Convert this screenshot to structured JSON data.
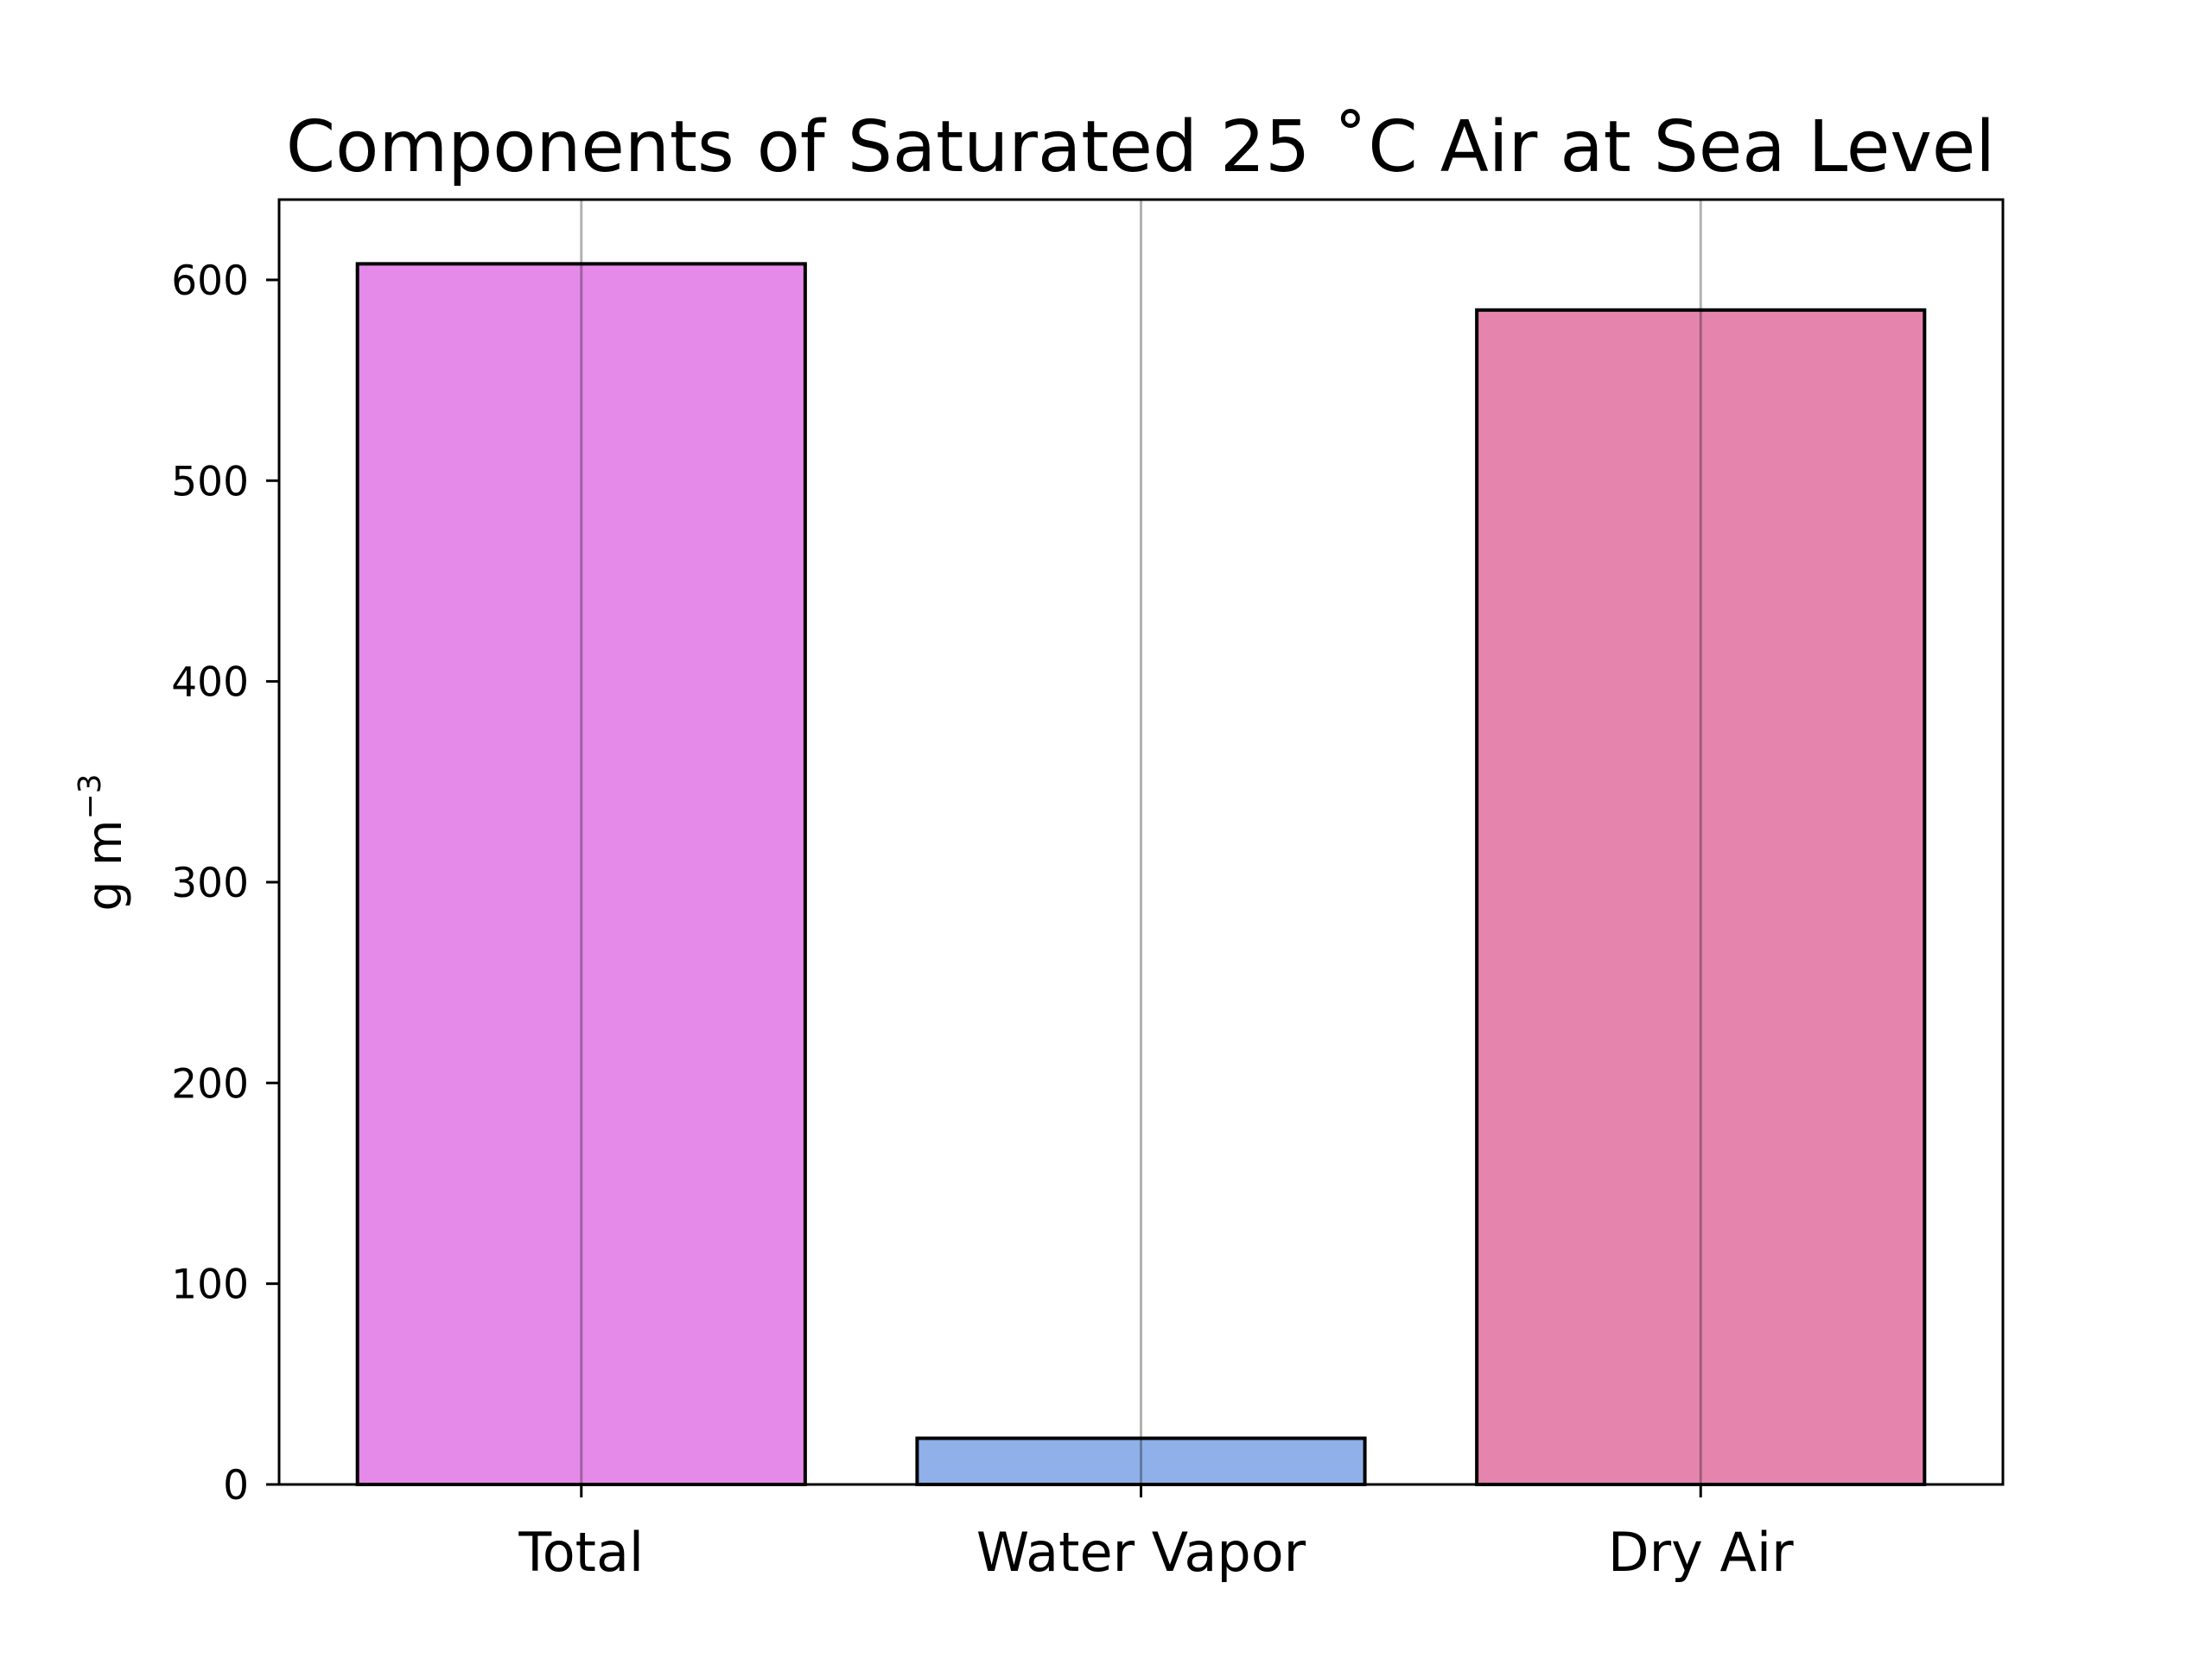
{
  "chart_data": {
    "type": "bar",
    "title": "Components of Saturated 25 ˚C Air at Sea Level",
    "xlabel": "",
    "ylabel": "g m",
    "ylabel_superscript": "−3",
    "categories": [
      "Total",
      "Water Vapor",
      "Dry Air"
    ],
    "values": [
      608,
      23,
      585
    ],
    "colors": [
      "#e68ae9",
      "#8fb0e8",
      "#e585ad"
    ],
    "edge_color": "#000000",
    "ylim": [
      0,
      640
    ],
    "yticks": [
      0,
      100,
      200,
      300,
      400,
      500,
      600
    ],
    "ytick_labels": [
      "0",
      "100",
      "200",
      "300",
      "400",
      "500",
      "600"
    ],
    "grid": "vertical lines at category ticks"
  }
}
